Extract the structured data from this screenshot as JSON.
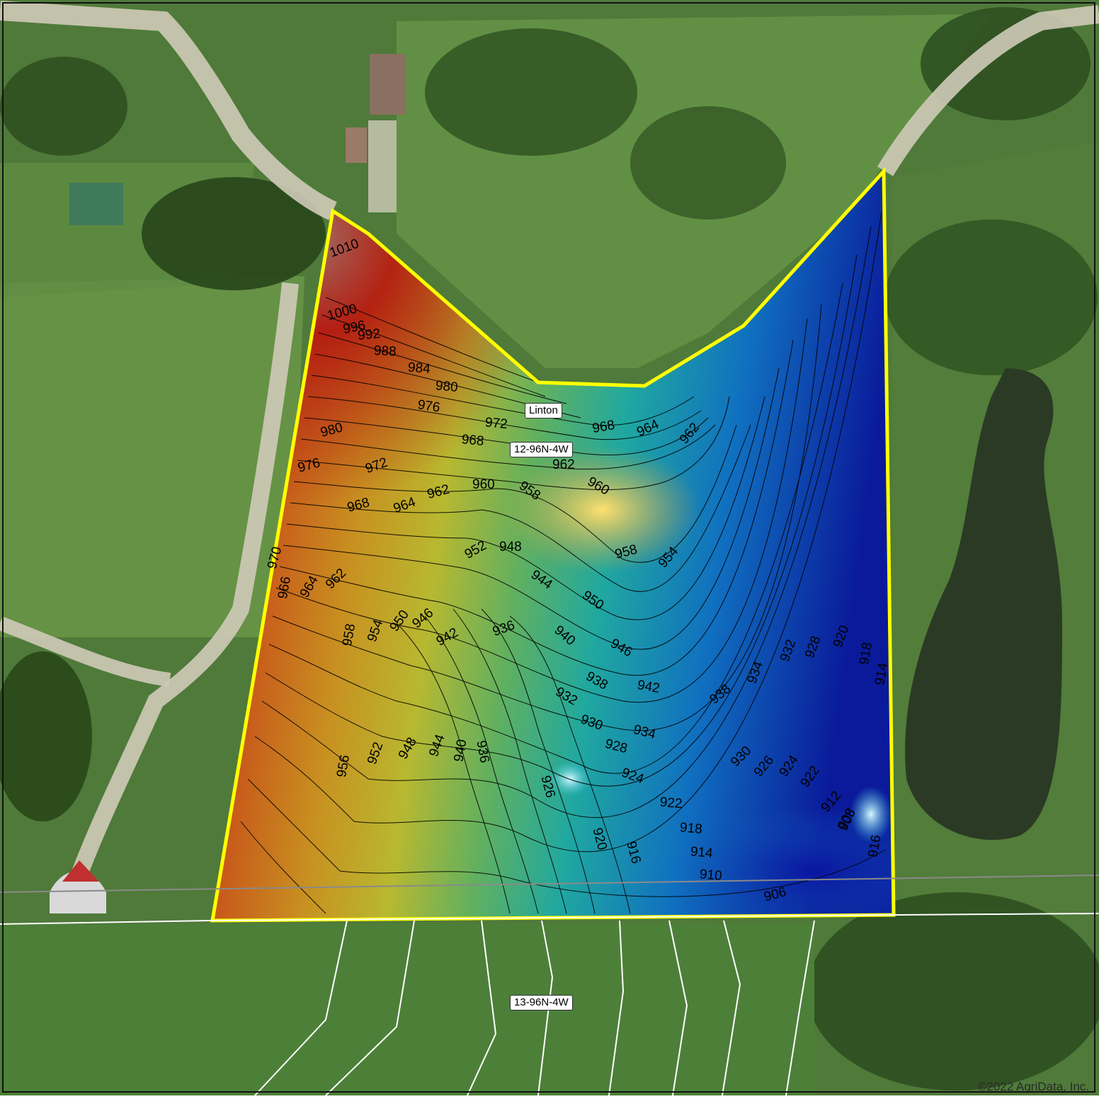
{
  "map": {
    "labels": {
      "place_name": "Linton",
      "section_north": "12-96N-4W",
      "section_south": "13-96N-4W"
    },
    "copyright": "©2022 AgriData, Inc.",
    "colors": {
      "boundary": "#ffff00",
      "high_elevation": "#b01010",
      "mid_elevation": "#e6c040",
      "low_elevation": "#0a1a9a",
      "section_line": "#ffffff",
      "contour_line": "#000000"
    },
    "elevation_labels": [
      "1010",
      "1000",
      "996",
      "992",
      "988",
      "984",
      "980",
      "976",
      "972",
      "968",
      "980",
      "976",
      "972",
      "968",
      "964",
      "962",
      "960",
      "958",
      "962",
      "968",
      "964",
      "962",
      "960",
      "958",
      "954",
      "952",
      "950",
      "948",
      "946",
      "944",
      "942",
      "940",
      "938",
      "936",
      "934",
      "932",
      "930",
      "928",
      "926",
      "924",
      "922",
      "920",
      "918",
      "916",
      "914",
      "912",
      "910",
      "908",
      "906",
      "970",
      "966",
      "964",
      "962",
      "958",
      "956",
      "954",
      "952",
      "950",
      "948",
      "946",
      "944",
      "942",
      "940",
      "938",
      "936",
      "934",
      "932",
      "930",
      "928",
      "926",
      "924",
      "922",
      "920",
      "918",
      "916",
      "914",
      "908"
    ]
  }
}
